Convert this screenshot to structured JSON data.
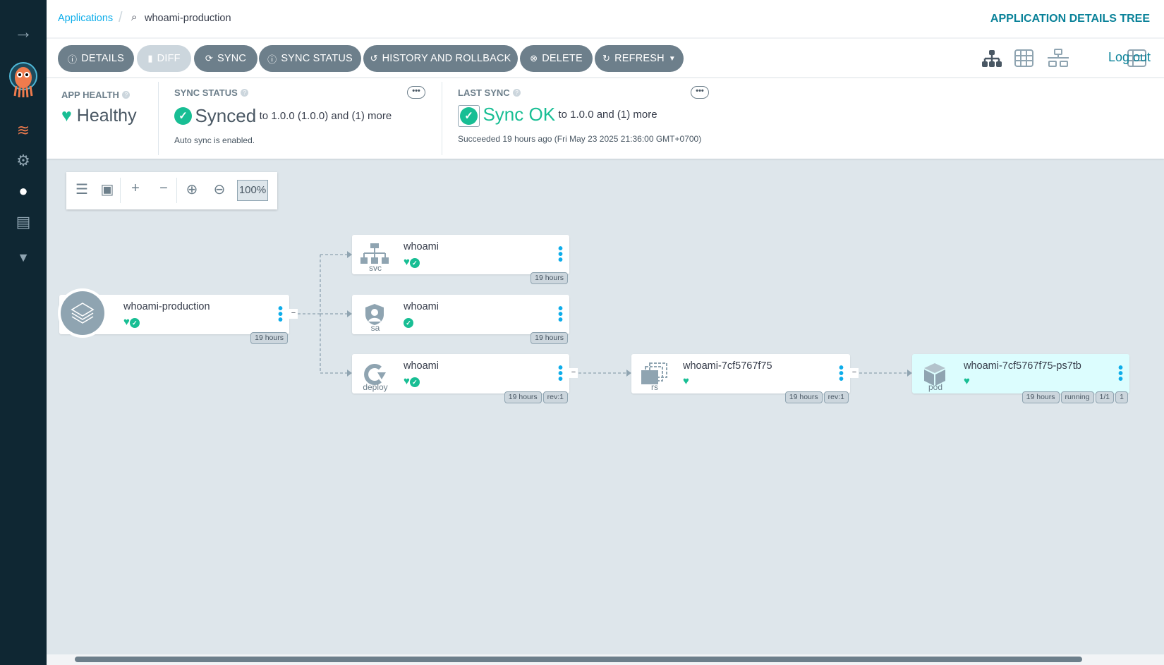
{
  "breadcrumb": {
    "root": "Applications",
    "current": "whoami-production"
  },
  "header": {
    "title": "APPLICATION DETAILS TREE"
  },
  "toolbar": {
    "details": "DETAILS",
    "diff": "DIFF",
    "sync": "SYNC",
    "sync_status": "SYNC STATUS",
    "history": "HISTORY AND ROLLBACK",
    "delete": "DELETE",
    "refresh": "REFRESH",
    "logout": "Log out",
    "view_icons": [
      "tree-view-icon",
      "pods-grid-icon",
      "network-view-icon",
      "list-view-icon"
    ],
    "active_view": "tree"
  },
  "status": {
    "app_health": {
      "label": "APP HEALTH",
      "value": "Healthy"
    },
    "sync_status": {
      "label": "SYNC STATUS",
      "value": "Synced",
      "detail": "to 1.0.0 (1.0.0) and (1) more",
      "note": "Auto sync is enabled."
    },
    "last_sync": {
      "label": "LAST SYNC",
      "value": "Sync OK",
      "detail": "to 1.0.0 and (1) more",
      "note": "Succeeded 19 hours ago (Fri May 23 2025 21:36:00 GMT+0700)"
    }
  },
  "graph_toolbar": {
    "zoom": "100%"
  },
  "nodes": {
    "app": {
      "name": "whoami-production",
      "age": "19 hours"
    },
    "svc": {
      "kind": "svc",
      "name": "whoami",
      "age": "19 hours"
    },
    "sa": {
      "kind": "sa",
      "name": "whoami",
      "age": "19 hours"
    },
    "deploy": {
      "kind": "deploy",
      "name": "whoami",
      "age": "19 hours",
      "rev": "rev:1"
    },
    "rs": {
      "kind": "rs",
      "name": "whoami-7cf5767f75",
      "age": "19 hours",
      "rev": "rev:1"
    },
    "pod": {
      "kind": "pod",
      "name": "whoami-7cf5767f75-ps7tb",
      "age": "19 hours",
      "phase": "running",
      "ready": "1/1",
      "restarts": "1"
    }
  },
  "colors": {
    "sidebar": "#0f2733",
    "healthy": "#18be94",
    "accent": "#0a8299",
    "button": "#6d7f8b",
    "pod_bg": "#dcfdfe"
  }
}
